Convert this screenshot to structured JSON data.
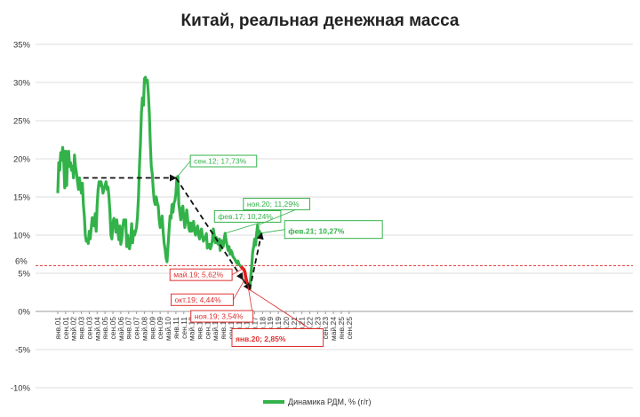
{
  "chart_data": {
    "type": "line",
    "title": "Китай, реальная денежная масса",
    "y_ticks": [
      "35%",
      "30%",
      "25%",
      "20%",
      "15%",
      "10%",
      "5%",
      "0%",
      "-5%",
      "-10%"
    ],
    "ylim": [
      -10,
      35
    ],
    "x_ticks": [
      "янв.01",
      "сен.01",
      "май.02",
      "янв.03",
      "сен.03",
      "май.04",
      "янв.05",
      "сен.05",
      "май.06",
      "янв.07",
      "сен.07",
      "май.08",
      "янв.09",
      "сен.09",
      "май.10",
      "янв.11",
      "сен.11",
      "май.12",
      "янв.13",
      "сен.13",
      "май.14",
      "янв.15",
      "сен.15",
      "май.16",
      "янв.17",
      "сен.17",
      "май.18",
      "янв.19",
      "сен.19",
      "май.20",
      "янв.21",
      "сен.21",
      "май.22",
      "янв.23",
      "сен.23",
      "май.24",
      "янв.25",
      "сен.25"
    ],
    "threshold": {
      "value": 6,
      "label": "6%",
      "color": "#e03030"
    },
    "series": [
      {
        "name": "Динамика  РДМ, % (г/г)",
        "color": "#33b24a",
        "points": [
          [
            0,
            15.5
          ],
          [
            1,
            19.5
          ],
          [
            2,
            18.5
          ],
          [
            3,
            20.8
          ],
          [
            4,
            19.8
          ],
          [
            5,
            21.5
          ],
          [
            6,
            20
          ],
          [
            7,
            16.2
          ],
          [
            8,
            21
          ],
          [
            9,
            16.5
          ],
          [
            10,
            20.5
          ],
          [
            11,
            21
          ],
          [
            12,
            19
          ],
          [
            13,
            19.5
          ],
          [
            14,
            18.5
          ],
          [
            15,
            19
          ],
          [
            16,
            17.5
          ],
          [
            17,
            20.5
          ],
          [
            18,
            19
          ],
          [
            19,
            18.2
          ],
          [
            20,
            17
          ],
          [
            21,
            16
          ],
          [
            22,
            17.5
          ],
          [
            23,
            16.3
          ],
          [
            24,
            15.5
          ],
          [
            25,
            16.8
          ],
          [
            26,
            14
          ],
          [
            27,
            12.5
          ],
          [
            28,
            10
          ],
          [
            29,
            9.2
          ],
          [
            30,
            9.4
          ],
          [
            31,
            8.9
          ],
          [
            32,
            10.5
          ],
          [
            33,
            9.5
          ],
          [
            34,
            11
          ],
          [
            35,
            12.3
          ],
          [
            36,
            11.5
          ],
          [
            37,
            11.2
          ],
          [
            38,
            12.8
          ],
          [
            39,
            10.5
          ],
          [
            40,
            14
          ],
          [
            41,
            16
          ],
          [
            42,
            17
          ],
          [
            43,
            16.5
          ],
          [
            44,
            17
          ],
          [
            45,
            16.3
          ],
          [
            46,
            15.5
          ],
          [
            47,
            16.2
          ],
          [
            48,
            16.5
          ],
          [
            49,
            17
          ],
          [
            50,
            16
          ],
          [
            51,
            16.3
          ],
          [
            52,
            15
          ],
          [
            53,
            13
          ],
          [
            54,
            10
          ],
          [
            55,
            9.5
          ],
          [
            56,
            11.5
          ],
          [
            57,
            12.2
          ],
          [
            58,
            11.8
          ],
          [
            59,
            10.4
          ],
          [
            60,
            12
          ],
          [
            61,
            10.5
          ],
          [
            62,
            9.4
          ],
          [
            63,
            11.2
          ],
          [
            64,
            8.8
          ],
          [
            65,
            9.5
          ],
          [
            66,
            11
          ],
          [
            67,
            12
          ],
          [
            68,
            11.5
          ],
          [
            69,
            12
          ],
          [
            70,
            8.5
          ],
          [
            71,
            10
          ],
          [
            72,
            8.5
          ],
          [
            73,
            8.2
          ],
          [
            74,
            9.5
          ],
          [
            75,
            11.5
          ],
          [
            76,
            9
          ],
          [
            77,
            10.5
          ],
          [
            78,
            10
          ],
          [
            79,
            10.5
          ],
          [
            80,
            11
          ],
          [
            81,
            12.5
          ],
          [
            82,
            15
          ],
          [
            83,
            19
          ],
          [
            84,
            22
          ],
          [
            85,
            26
          ],
          [
            86,
            28
          ],
          [
            87,
            27
          ],
          [
            88,
            30.5
          ],
          [
            89,
            30.7
          ],
          [
            90,
            30
          ],
          [
            91,
            30.3
          ],
          [
            92,
            28.5
          ],
          [
            93,
            26
          ],
          [
            94,
            22
          ],
          [
            95,
            19
          ],
          [
            96,
            18
          ],
          [
            97,
            16
          ],
          [
            98,
            14.5
          ],
          [
            99,
            14
          ],
          [
            100,
            15
          ],
          [
            101,
            14.2
          ],
          [
            102,
            13.8
          ],
          [
            103,
            12
          ],
          [
            104,
            11
          ],
          [
            105,
            11.5
          ],
          [
            106,
            12.5
          ],
          [
            107,
            10.5
          ],
          [
            108,
            9
          ],
          [
            109,
            8.2
          ],
          [
            110,
            7
          ],
          [
            111,
            6.5
          ],
          [
            112,
            8.5
          ],
          [
            113,
            10.5
          ],
          [
            114,
            12.5
          ],
          [
            115,
            12.2
          ],
          [
            116,
            14
          ],
          [
            117,
            13
          ],
          [
            118,
            14.2
          ],
          [
            119,
            14.5
          ],
          [
            120,
            15.5
          ],
          [
            121,
            17.5
          ],
          [
            122,
            17.7
          ],
          [
            123,
            14
          ],
          [
            124,
            13
          ],
          [
            125,
            12
          ],
          [
            126,
            13.5
          ],
          [
            127,
            13.8
          ],
          [
            128,
            12.2
          ],
          [
            129,
            11
          ],
          [
            130,
            12.3
          ],
          [
            131,
            13.3
          ],
          [
            132,
            12
          ],
          [
            133,
            11
          ],
          [
            134,
            10.5
          ],
          [
            135,
            11.6
          ],
          [
            136,
            10.5
          ],
          [
            137,
            10.8
          ],
          [
            138,
            11.8
          ],
          [
            139,
            10.5
          ],
          [
            140,
            10
          ],
          [
            141,
            10.8
          ],
          [
            142,
            11.2
          ],
          [
            143,
            10
          ],
          [
            144,
            9.5
          ],
          [
            145,
            10.5
          ],
          [
            146,
            10.8
          ],
          [
            147,
            9.8
          ],
          [
            148,
            9.2
          ],
          [
            149,
            9.5
          ],
          [
            150,
            9.8
          ],
          [
            151,
            10.2
          ],
          [
            152,
            8.3
          ],
          [
            153,
            8.5
          ],
          [
            154,
            8.8
          ],
          [
            155,
            8.2
          ],
          [
            156,
            8.6
          ],
          [
            157,
            9.3
          ],
          [
            158,
            10.8
          ],
          [
            159,
            10
          ],
          [
            160,
            9
          ],
          [
            161,
            9.7
          ],
          [
            162,
            9
          ],
          [
            163,
            8.8
          ],
          [
            164,
            9.5
          ],
          [
            165,
            8
          ],
          [
            166,
            9.3
          ],
          [
            167,
            9
          ],
          [
            168,
            8.5
          ],
          [
            169,
            9.5
          ],
          [
            170,
            10.24
          ],
          [
            171,
            9.3
          ],
          [
            172,
            8.6
          ],
          [
            173,
            8
          ],
          [
            174,
            8.5
          ],
          [
            175,
            7.5
          ],
          [
            176,
            8
          ],
          [
            177,
            7.7
          ],
          [
            178,
            7.2
          ],
          [
            179,
            7
          ],
          [
            180,
            6.8
          ],
          [
            181,
            6.5
          ],
          [
            182,
            6.3
          ],
          [
            183,
            6.6
          ],
          [
            184,
            6.2
          ],
          [
            185,
            6
          ],
          [
            186,
            5.9
          ],
          [
            187,
            5.75
          ],
          [
            188,
            5.62
          ],
          [
            189,
            5.5
          ],
          [
            190,
            5.2
          ],
          [
            191,
            4.44
          ],
          [
            192,
            3.9
          ],
          [
            193,
            3.54
          ],
          [
            194,
            3.2
          ],
          [
            195,
            2.85
          ],
          [
            196,
            4.5
          ],
          [
            197,
            6
          ],
          [
            198,
            7.8
          ],
          [
            199,
            8.5
          ],
          [
            200,
            9.5
          ],
          [
            201,
            8.7
          ],
          [
            202,
            10.2
          ],
          [
            203,
            11.29
          ],
          [
            204,
            9.8
          ],
          [
            205,
            10.5
          ],
          [
            206,
            10
          ],
          [
            207,
            10.27
          ]
        ]
      }
    ],
    "red_segment_from": 186,
    "trend_arrows": [
      {
        "from": [
          26,
          17.5
        ],
        "to": [
          120,
          17.5
        ]
      },
      {
        "from": [
          120,
          17.5
        ],
        "to": [
          188,
          4.2
        ]
      },
      {
        "from": [
          188,
          4.2
        ],
        "to": [
          195,
          2.85
        ]
      },
      {
        "from": [
          195,
          2.85
        ],
        "to": [
          207,
          10.27
        ]
      }
    ],
    "annotations": [
      {
        "label": "сен.12; 17,73%",
        "point": [
          122,
          17.73
        ],
        "color": "#33b24a",
        "size": "small"
      },
      {
        "label": "фев.17; 10,24%",
        "point": [
          170,
          10.24
        ],
        "color": "#33b24a",
        "size": "small"
      },
      {
        "label": "ноя.20; 11,29%",
        "point": [
          203,
          11.29
        ],
        "color": "#33b24a",
        "size": "small"
      },
      {
        "label": "фев.21; 10,27%",
        "point": [
          207,
          10.27
        ],
        "color": "#33b24a",
        "size": "large"
      },
      {
        "label": "май.19; 5,62%",
        "point": [
          188,
          5.62
        ],
        "color": "#e03030",
        "size": "small"
      },
      {
        "label": "окт.19; 4,44%",
        "point": [
          191,
          4.44
        ],
        "color": "#e03030",
        "size": "small"
      },
      {
        "label": "ноя.19; 3,54%",
        "point": [
          193,
          3.54
        ],
        "color": "#e03030",
        "size": "small"
      },
      {
        "label": "янв.20; 2,85%",
        "point": [
          195,
          2.85
        ],
        "color": "#e03030",
        "size": "large"
      }
    ],
    "legend": {
      "label": "Динамика  РДМ, % (г/г)",
      "position": "bottom"
    },
    "grid": true
  }
}
